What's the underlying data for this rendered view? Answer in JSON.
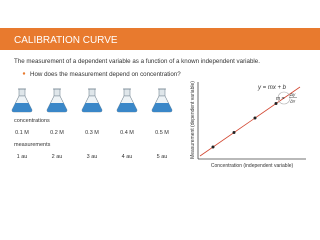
{
  "header": {
    "title": "CALIBRATION CURVE"
  },
  "body": {
    "statement": "The measurement of a dependent variable as a function of a known independent variable.",
    "bullet": "How does the measurement depend on concentration?"
  },
  "samples": {
    "concentrations_label": "concentrations",
    "concentrations": [
      "0.1 M",
      "0.2 M",
      "0.3 M",
      "0.4 M",
      "0.5 M"
    ],
    "measurements_label": "measurements",
    "measurements": [
      "1 au",
      "2 au",
      "3 au",
      "4 au",
      "5 au"
    ]
  },
  "graph": {
    "equation": "y = mx + b",
    "slope_m": "m =",
    "slope_num": "Δy",
    "slope_den": "Δx",
    "x_label": "Concentration (independent variable)",
    "y_label": "Measurement (dependent variable)"
  }
}
